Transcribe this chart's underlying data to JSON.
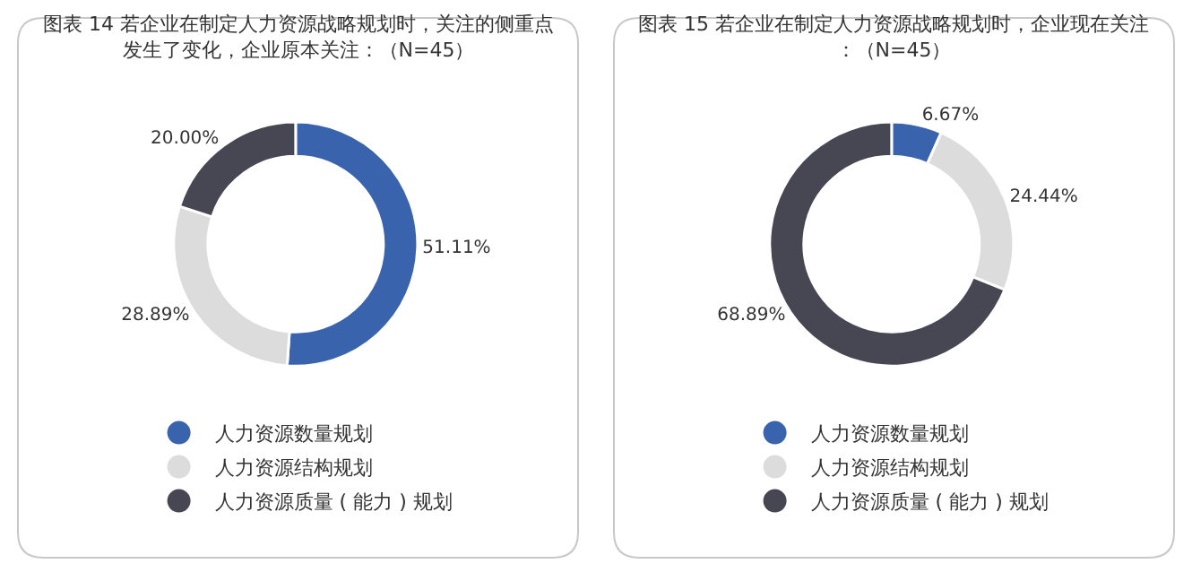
{
  "chart_data": [
    {
      "type": "donut",
      "title": "图表 14 若企业在制定人力资源战略规划时，关注的侧重点发生了变化，企业原本关注：（N=45）",
      "categories": [
        "人力资源数量规划",
        "人力资源结构规划",
        "人力资源质量 ( 能力 ) 规划"
      ],
      "values": [
        51.11,
        28.89,
        20.0
      ],
      "value_labels": [
        "51.11%",
        "28.89%",
        "20.00%"
      ],
      "colors": [
        "#3a63ad",
        "#dcdcdd",
        "#474653"
      ],
      "legend": "bottom"
    },
    {
      "type": "donut",
      "title": "图表 15 若企业在制定人力资源战略规划时，企业现在关注：（N=45）",
      "categories": [
        "人力资源数量规划",
        "人力资源结构规划",
        "人力资源质量 ( 能力 ) 规划"
      ],
      "values": [
        6.67,
        24.44,
        68.89
      ],
      "value_labels": [
        "6.67%",
        "24.44%",
        "68.89%"
      ],
      "colors": [
        "#3a63ad",
        "#dcdcdd",
        "#474653"
      ],
      "legend": "bottom"
    }
  ]
}
